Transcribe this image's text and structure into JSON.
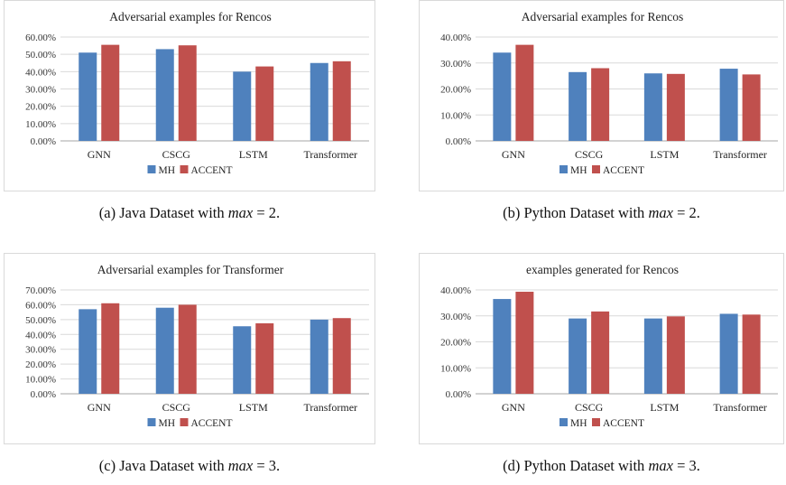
{
  "colors": {
    "MH": "#4F81BD",
    "ACCENT": "#C0504D",
    "grid": "#d9d9d9",
    "axis": "#a6a6a6"
  },
  "charts": [
    {
      "caption": {
        "prefix": "(a)  Java Dataset with ",
        "var": "max",
        "suffix": " = 2."
      },
      "chart_data": {
        "type": "bar",
        "title": "Adversarial examples for Rencos",
        "categories": [
          "GNN",
          "CSCG",
          "LSTM",
          "Transformer"
        ],
        "series": [
          {
            "name": "MH",
            "values": [
              0.51,
              0.53,
              0.4,
              0.45
            ]
          },
          {
            "name": "ACCENT",
            "values": [
              0.555,
              0.552,
              0.43,
              0.46
            ]
          }
        ],
        "yticks": [
          "0.00%",
          "10.00%",
          "20.00%",
          "30.00%",
          "40.00%",
          "50.00%",
          "60.00%"
        ],
        "ylim": [
          0,
          0.6
        ],
        "grid": true,
        "legend": "bottom"
      }
    },
    {
      "caption": {
        "prefix": "(b)  Python Dataset with ",
        "var": "max",
        "suffix": " = 2."
      },
      "chart_data": {
        "type": "bar",
        "title": "Adversarial examples for Rencos",
        "categories": [
          "GNN",
          "CSCG",
          "LSTM",
          "Transformer"
        ],
        "series": [
          {
            "name": "MH",
            "values": [
              0.34,
              0.265,
              0.26,
              0.278
            ]
          },
          {
            "name": "ACCENT",
            "values": [
              0.37,
              0.28,
              0.258,
              0.256
            ]
          }
        ],
        "yticks": [
          "0.00%",
          "10.00%",
          "20.00%",
          "30.00%",
          "40.00%"
        ],
        "ylim": [
          0,
          0.4
        ],
        "grid": true,
        "legend": "bottom"
      }
    },
    {
      "caption": {
        "prefix": "(c)  Java Dataset with ",
        "var": "max",
        "suffix": " = 3."
      },
      "chart_data": {
        "type": "bar",
        "title": "Adversarial examples for Transformer",
        "categories": [
          "GNN",
          "CSCG",
          "LSTM",
          "Transformer"
        ],
        "series": [
          {
            "name": "MH",
            "values": [
              0.57,
              0.58,
              0.455,
              0.5
            ]
          },
          {
            "name": "ACCENT",
            "values": [
              0.61,
              0.6,
              0.475,
              0.51
            ]
          }
        ],
        "yticks": [
          "0.00%",
          "10.00%",
          "20.00%",
          "30.00%",
          "40.00%",
          "50.00%",
          "60.00%",
          "70.00%"
        ],
        "ylim": [
          0,
          0.7
        ],
        "grid": true,
        "legend": "bottom"
      }
    },
    {
      "caption": {
        "prefix": "(d)  Python Dataset with ",
        "var": "max",
        "suffix": " = 3."
      },
      "chart_data": {
        "type": "bar",
        "title": "examples generated for Rencos",
        "categories": [
          "GNN",
          "CSCG",
          "LSTM",
          "Transformer"
        ],
        "series": [
          {
            "name": "MH",
            "values": [
              0.365,
              0.29,
              0.29,
              0.308
            ]
          },
          {
            "name": "ACCENT",
            "values": [
              0.393,
              0.317,
              0.298,
              0.305
            ]
          }
        ],
        "yticks": [
          "0.00%",
          "10.00%",
          "20.00%",
          "30.00%",
          "40.00%"
        ],
        "ylim": [
          0,
          0.4
        ],
        "grid": true,
        "legend": "bottom"
      }
    }
  ]
}
